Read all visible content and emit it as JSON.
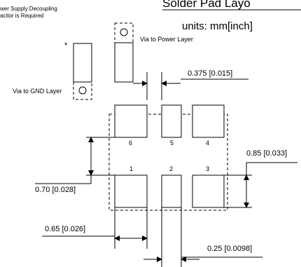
{
  "header": {
    "title_partial": "Solder Pad Layo",
    "units": "units: mm[inch]"
  },
  "notes": {
    "decoupling_line1": "wer Supply Decoupling",
    "decoupling_line2": "acitor is Required",
    "asterisk": "*"
  },
  "vias": {
    "power": "Via to Power Layer",
    "ground": "Via to GND Layer"
  },
  "pads": {
    "numbers": [
      "1",
      "2",
      "3",
      "4",
      "5",
      "6"
    ]
  },
  "dimensions": {
    "gap": "0.375 [0.015]",
    "pad_height": "0.85 [0.033]",
    "row_gap": "0.70 [0.028]",
    "pad_width": "0.65 [0.026]",
    "center_width": "0.25 [0.0098]"
  }
}
